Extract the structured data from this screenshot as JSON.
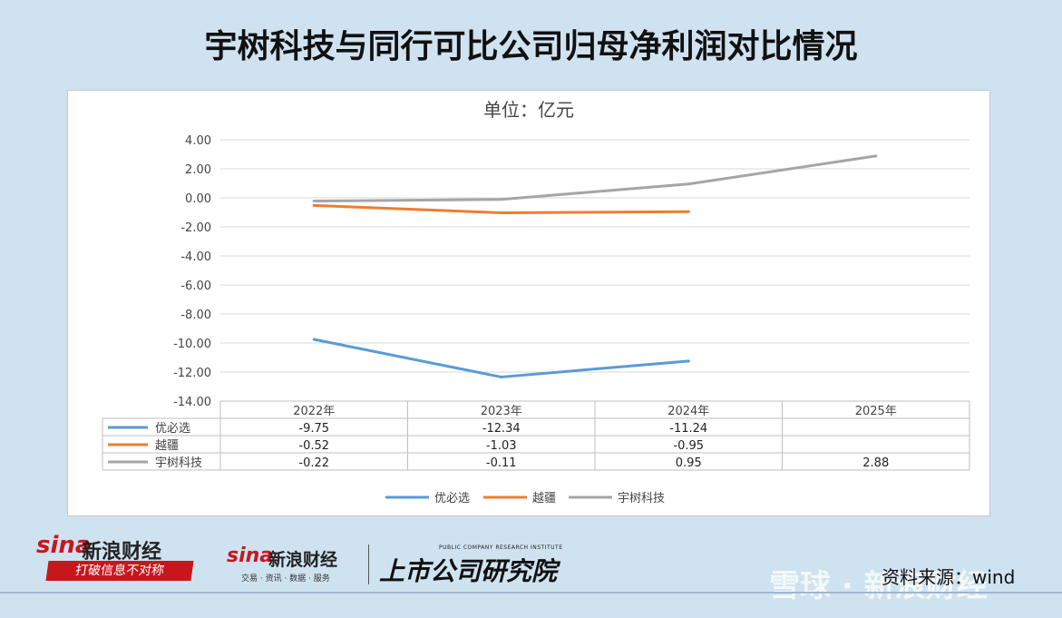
{
  "title": "宇树科技与同行可比公司归母净利润对比情况",
  "chart_data": {
    "type": "line",
    "title": "单位：亿元",
    "categories": [
      "2022年",
      "2023年",
      "2024年",
      "2025年"
    ],
    "ylim": [
      -14,
      4
    ],
    "yticks": [
      "4.00",
      "2.00",
      "0.00",
      "-2.00",
      "-4.00",
      "-6.00",
      "-8.00",
      "-10.00",
      "-12.00",
      "-14.00"
    ],
    "ytick_values": [
      4,
      2,
      0,
      -2,
      -4,
      -6,
      -8,
      -10,
      -12,
      -14
    ],
    "grid": true,
    "legend_position": "bottom",
    "series": [
      {
        "name": "优必选",
        "color": "#5b9bd5",
        "values": [
          -9.75,
          -12.34,
          -11.24,
          null
        ],
        "labels": [
          "-9.75",
          "-12.34",
          "-11.24",
          ""
        ]
      },
      {
        "name": "越疆",
        "color": "#ed7d31",
        "values": [
          -0.52,
          -1.03,
          -0.95,
          null
        ],
        "labels": [
          "-0.52",
          "-1.03",
          "-0.95",
          ""
        ]
      },
      {
        "name": "宇树科技",
        "color": "#a5a5a5",
        "values": [
          -0.22,
          -0.11,
          0.95,
          2.88
        ],
        "labels": [
          "-0.22",
          "-0.11",
          "0.95",
          "2.88"
        ]
      }
    ]
  },
  "logos": {
    "sina_word": "sina",
    "sina_cn": "新浪财经",
    "sina_tagline": "打破信息不对称",
    "sina2_word": "sina",
    "sina2_cn": "新浪财经",
    "sina2_sub": "交易 · 资讯 · 数据 · 服务",
    "inst_en": "PUBLIC COMPANY RESEARCH INSTITUTE",
    "inst_cn": "上市公司研究院"
  },
  "watermark": "雪球 · 新浪财经",
  "source": "资料来源：wind"
}
